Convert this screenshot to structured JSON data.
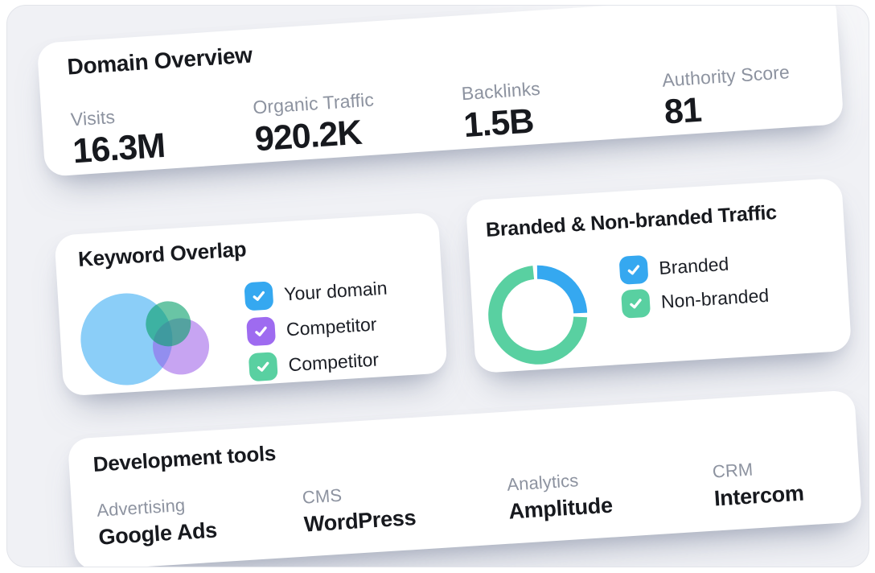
{
  "colors": {
    "frame_bg": "#F0F1F5",
    "card_bg": "#FFFFFF",
    "text_dark": "#17191E",
    "label_gray": "#8D93A0",
    "blue": "#35A8F0",
    "purple": "#9E6BF0",
    "green": "#59D0A1",
    "venn_blue": "#8BCEF8",
    "venn_purple": "rgba(153,90,231,0.55)",
    "venn_green": "rgba(13,162,110,0.62)"
  },
  "cards": {
    "domain_overview": {
      "title": "Domain Overview",
      "metrics": [
        {
          "label": "Visits",
          "value": "16.3M"
        },
        {
          "label": "Organic Traffic",
          "value": "920.2K"
        },
        {
          "label": "Backlinks",
          "value": "1.5B"
        },
        {
          "label": "Authority Score",
          "value": "81"
        }
      ]
    },
    "keyword_overlap": {
      "title": "Keyword Overlap",
      "legend": [
        {
          "label": "Your domain",
          "color": "#35A8F0",
          "checked": true
        },
        {
          "label": "Competitor",
          "color": "#9E6BF0",
          "checked": true
        },
        {
          "label": "Competitor",
          "color": "#59D0A1",
          "checked": true
        }
      ]
    },
    "branded_traffic": {
      "title": "Branded & Non-branded Traffic",
      "legend": [
        {
          "label": "Branded",
          "color": "#35A8F0",
          "checked": true
        },
        {
          "label": "Non-branded",
          "color": "#59D0A1",
          "checked": true
        }
      ]
    },
    "development_tools": {
      "title": "Development tools",
      "items": [
        {
          "category": "Advertising",
          "tool": "Google Ads"
        },
        {
          "category": "CMS",
          "tool": "WordPress"
        },
        {
          "category": "Analytics",
          "tool": "Amplitude"
        },
        {
          "category": "CRM",
          "tool": "Intercom"
        }
      ]
    }
  },
  "chart_data": [
    {
      "type": "pie",
      "donut": true,
      "title": "Branded & Non-branded Traffic",
      "labels": [
        "Branded",
        "Non-branded"
      ],
      "values": [
        26,
        74
      ],
      "colors": [
        "#35A8F0",
        "#59D0A1"
      ],
      "legend_position": "right"
    },
    {
      "type": "venn",
      "title": "Keyword Overlap",
      "sets": [
        "Your domain",
        "Competitor",
        "Competitor"
      ],
      "colors": [
        "#8BCEF8",
        "rgba(153,90,231,0.55)",
        "rgba(13,162,110,0.62)"
      ]
    }
  ]
}
